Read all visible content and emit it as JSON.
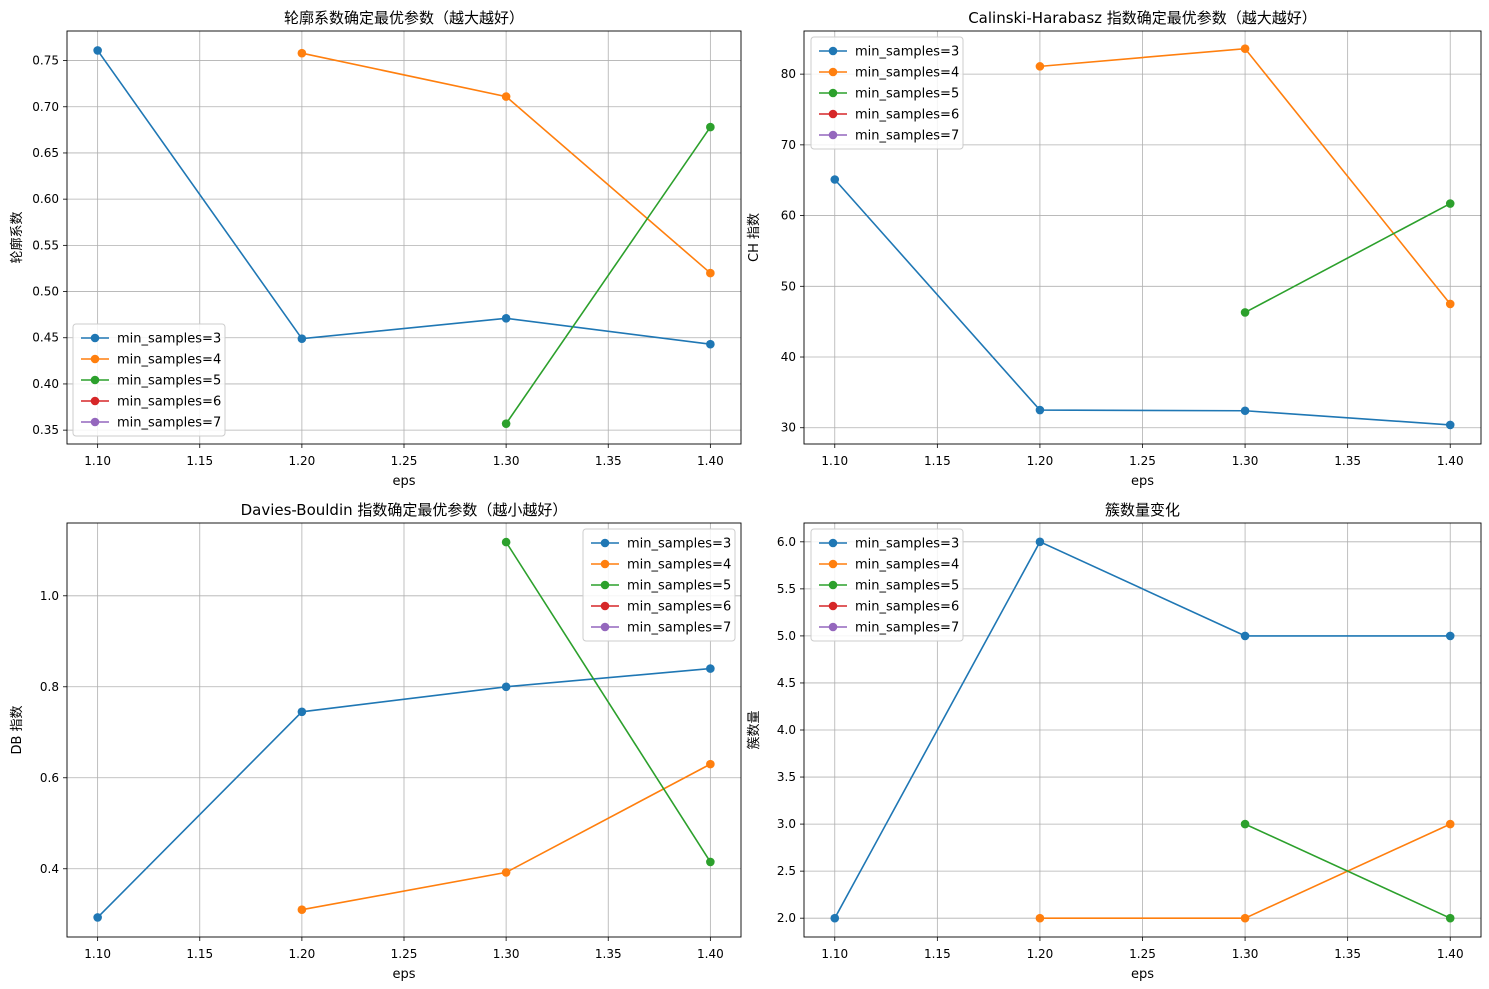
{
  "chart_data": [
    {
      "type": "line",
      "title": "轮廓系数确定最优参数（越大越好）",
      "xlabel": "eps",
      "ylabel": "轮廓系数",
      "x": [
        1.1,
        1.2,
        1.3,
        1.4
      ],
      "xlim": [
        1.085,
        1.415
      ],
      "ylim": [
        0.335,
        0.782
      ],
      "xticks": [
        1.1,
        1.15,
        1.2,
        1.25,
        1.3,
        1.35,
        1.4
      ],
      "xtick_labels": [
        "1.10",
        "1.15",
        "1.20",
        "1.25",
        "1.30",
        "1.35",
        "1.40"
      ],
      "yticks": [
        0.35,
        0.4,
        0.45,
        0.5,
        0.55,
        0.6,
        0.65,
        0.7,
        0.75
      ],
      "ytick_labels": [
        "0.35",
        "0.40",
        "0.45",
        "0.50",
        "0.55",
        "0.60",
        "0.65",
        "0.70",
        "0.75"
      ],
      "grid": true,
      "legend_position": "lower-left",
      "series": [
        {
          "name": "min_samples=3",
          "color": "#1f77b4",
          "values": [
            0.761,
            0.449,
            0.471,
            0.443
          ]
        },
        {
          "name": "min_samples=4",
          "color": "#ff7f0e",
          "values": [
            null,
            0.758,
            0.711,
            0.52
          ]
        },
        {
          "name": "min_samples=5",
          "color": "#2ca02c",
          "values": [
            null,
            null,
            0.357,
            0.678
          ]
        },
        {
          "name": "min_samples=6",
          "color": "#d62728",
          "values": [
            null,
            null,
            null,
            null
          ]
        },
        {
          "name": "min_samples=7",
          "color": "#9467bd",
          "values": [
            null,
            null,
            null,
            null
          ]
        }
      ]
    },
    {
      "type": "line",
      "title": "Calinski-Harabasz 指数确定最优参数（越大越好）",
      "xlabel": "eps",
      "ylabel": "CH 指数",
      "x": [
        1.1,
        1.2,
        1.3,
        1.4
      ],
      "xlim": [
        1.085,
        1.415
      ],
      "ylim": [
        27.7,
        86.1
      ],
      "xticks": [
        1.1,
        1.15,
        1.2,
        1.25,
        1.3,
        1.35,
        1.4
      ],
      "xtick_labels": [
        "1.10",
        "1.15",
        "1.20",
        "1.25",
        "1.30",
        "1.35",
        "1.40"
      ],
      "yticks": [
        30,
        40,
        50,
        60,
        70,
        80
      ],
      "ytick_labels": [
        "30",
        "40",
        "50",
        "60",
        "70",
        "80"
      ],
      "grid": true,
      "legend_position": "upper-left",
      "series": [
        {
          "name": "min_samples=3",
          "color": "#1f77b4",
          "values": [
            65.1,
            32.5,
            32.4,
            30.4
          ]
        },
        {
          "name": "min_samples=4",
          "color": "#ff7f0e",
          "values": [
            null,
            81.1,
            83.6,
            47.5
          ]
        },
        {
          "name": "min_samples=5",
          "color": "#2ca02c",
          "values": [
            null,
            null,
            46.3,
            61.7
          ]
        },
        {
          "name": "min_samples=6",
          "color": "#d62728",
          "values": [
            null,
            null,
            null,
            null
          ]
        },
        {
          "name": "min_samples=7",
          "color": "#9467bd",
          "values": [
            null,
            null,
            null,
            null
          ]
        }
      ]
    },
    {
      "type": "line",
      "title": "Davies-Bouldin 指数确定最优参数（越小越好）",
      "xlabel": "eps",
      "ylabel": "DB 指数",
      "x": [
        1.1,
        1.2,
        1.3,
        1.4
      ],
      "xlim": [
        1.085,
        1.415
      ],
      "ylim": [
        0.25,
        1.16
      ],
      "xticks": [
        1.1,
        1.15,
        1.2,
        1.25,
        1.3,
        1.35,
        1.4
      ],
      "xtick_labels": [
        "1.10",
        "1.15",
        "1.20",
        "1.25",
        "1.30",
        "1.35",
        "1.40"
      ],
      "yticks": [
        0.4,
        0.6,
        0.8,
        1.0
      ],
      "ytick_labels": [
        "0.4",
        "0.6",
        "0.8",
        "1.0"
      ],
      "grid": true,
      "legend_position": "upper-right",
      "series": [
        {
          "name": "min_samples=3",
          "color": "#1f77b4",
          "values": [
            0.293,
            0.745,
            0.8,
            0.84
          ]
        },
        {
          "name": "min_samples=4",
          "color": "#ff7f0e",
          "values": [
            null,
            0.31,
            0.392,
            0.63
          ]
        },
        {
          "name": "min_samples=5",
          "color": "#2ca02c",
          "values": [
            null,
            null,
            1.118,
            0.415
          ]
        },
        {
          "name": "min_samples=6",
          "color": "#d62728",
          "values": [
            null,
            null,
            null,
            null
          ]
        },
        {
          "name": "min_samples=7",
          "color": "#9467bd",
          "values": [
            null,
            null,
            null,
            null
          ]
        }
      ]
    },
    {
      "type": "line",
      "title": "簇数量变化",
      "xlabel": "eps",
      "ylabel": "簇数量",
      "x": [
        1.1,
        1.2,
        1.3,
        1.4
      ],
      "xlim": [
        1.085,
        1.415
      ],
      "ylim": [
        1.8,
        6.2
      ],
      "xticks": [
        1.1,
        1.15,
        1.2,
        1.25,
        1.3,
        1.35,
        1.4
      ],
      "xtick_labels": [
        "1.10",
        "1.15",
        "1.20",
        "1.25",
        "1.30",
        "1.35",
        "1.40"
      ],
      "yticks": [
        2.0,
        2.5,
        3.0,
        3.5,
        4.0,
        4.5,
        5.0,
        5.5,
        6.0
      ],
      "ytick_labels": [
        "2.0",
        "2.5",
        "3.0",
        "3.5",
        "4.0",
        "4.5",
        "5.0",
        "5.5",
        "6.0"
      ],
      "grid": true,
      "legend_position": "upper-left",
      "series": [
        {
          "name": "min_samples=3",
          "color": "#1f77b4",
          "values": [
            2,
            6,
            5,
            5
          ]
        },
        {
          "name": "min_samples=4",
          "color": "#ff7f0e",
          "values": [
            null,
            2,
            2,
            3
          ]
        },
        {
          "name": "min_samples=5",
          "color": "#2ca02c",
          "values": [
            null,
            null,
            3,
            2
          ]
        },
        {
          "name": "min_samples=6",
          "color": "#d62728",
          "values": [
            null,
            null,
            null,
            null
          ]
        },
        {
          "name": "min_samples=7",
          "color": "#9467bd",
          "values": [
            null,
            null,
            null,
            null
          ]
        }
      ]
    }
  ]
}
